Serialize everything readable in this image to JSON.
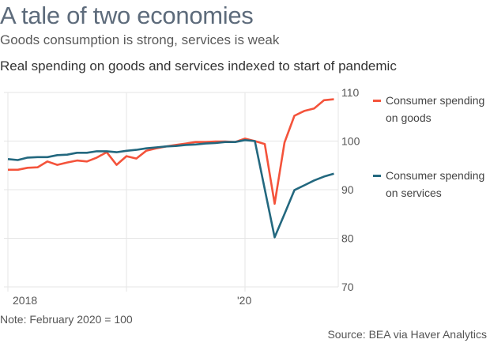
{
  "header": {
    "title": "A tale of two economies",
    "subtitle": "Goods consumption is strong, services is weak"
  },
  "footer": {
    "note": "Note: February 2020 = 100",
    "source": "Source: BEA via Haver Analytics"
  },
  "chart_data": {
    "type": "line",
    "title": "Real spending on goods and services indexed to start of pandemic",
    "xlabel": "",
    "ylabel": "",
    "ylim": [
      70,
      110
    ],
    "yticks": [
      70,
      80,
      90,
      100,
      110
    ],
    "xticks": [
      {
        "label": "2018",
        "index": 0
      },
      {
        "label": "",
        "index": 12
      },
      {
        "label": "'20",
        "index": 24
      }
    ],
    "x": [
      "2018-01",
      "2018-02",
      "2018-03",
      "2018-04",
      "2018-05",
      "2018-06",
      "2018-07",
      "2018-08",
      "2018-09",
      "2018-10",
      "2018-11",
      "2018-12",
      "2019-01",
      "2019-02",
      "2019-03",
      "2019-04",
      "2019-05",
      "2019-06",
      "2019-07",
      "2019-08",
      "2019-09",
      "2019-10",
      "2019-11",
      "2019-12",
      "2020-01",
      "2020-02",
      "2020-03",
      "2020-04",
      "2020-05",
      "2020-06",
      "2020-07",
      "2020-08",
      "2020-09",
      "2020-10"
    ],
    "grid": true,
    "y_axis_side": "right",
    "legend_placement": "right",
    "series": [
      {
        "name": "Consumer spending on goods",
        "legend_lines": [
          "Consumer spending",
          "on goods"
        ],
        "color": "#f4533b",
        "values": [
          94.1,
          94.1,
          94.5,
          94.6,
          95.8,
          95.1,
          95.6,
          96.0,
          95.8,
          96.6,
          97.7,
          95.1,
          96.9,
          96.4,
          98.0,
          98.5,
          98.9,
          99.2,
          99.5,
          99.8,
          99.8,
          99.9,
          99.9,
          99.8,
          100.5,
          100.0,
          99.4,
          87.1,
          99.7,
          105.2,
          106.2,
          106.7,
          108.4,
          108.6
        ]
      },
      {
        "name": "Consumer spending on services",
        "legend_lines": [
          "Consumer spending",
          "on services"
        ],
        "color": "#23687f",
        "values": [
          96.3,
          96.1,
          96.6,
          96.7,
          96.7,
          97.1,
          97.2,
          97.6,
          97.6,
          97.9,
          97.9,
          97.7,
          98.0,
          98.2,
          98.5,
          98.7,
          98.9,
          99.0,
          99.2,
          99.3,
          99.5,
          99.6,
          99.8,
          99.8,
          100.2,
          100.0,
          90.1,
          80.2,
          85.0,
          89.9,
          90.9,
          91.9,
          92.7,
          93.3
        ]
      }
    ]
  }
}
